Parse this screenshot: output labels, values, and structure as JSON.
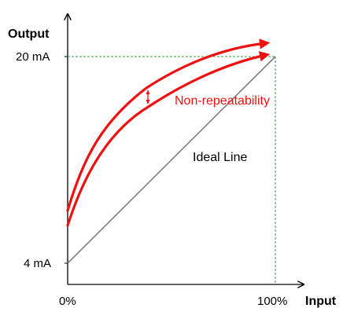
{
  "diagram": {
    "y_axis_label": "Output",
    "x_axis_label": "Input",
    "y_ticks": {
      "top": "20 mA",
      "bottom": "4 mA"
    },
    "x_ticks": {
      "start": "0%",
      "end": "100%"
    },
    "curve_label": "Non-repeatability",
    "ideal_label": "Ideal Line",
    "colors": {
      "curve": "#ee1111",
      "ideal": "#808080",
      "guide": "#2e9e44",
      "axis": "#000000"
    }
  }
}
